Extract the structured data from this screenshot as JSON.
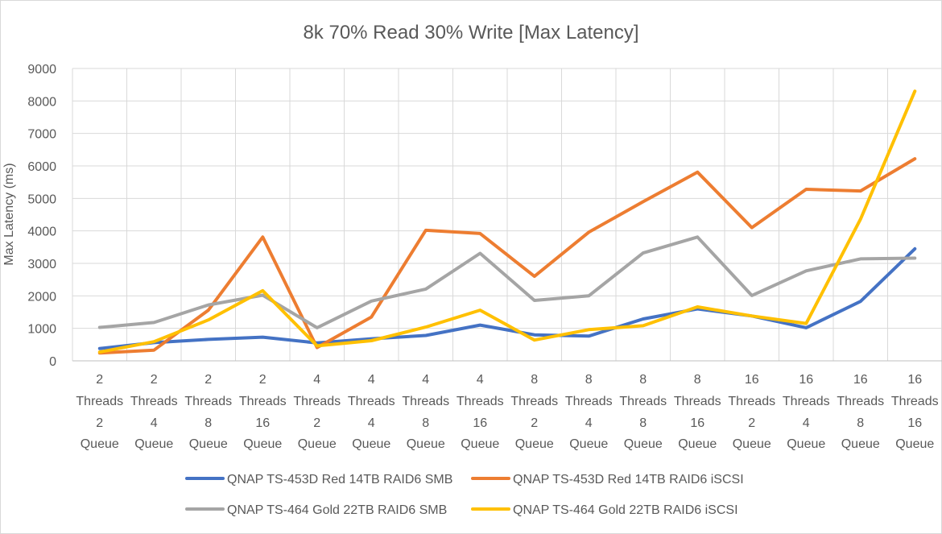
{
  "chart_data": {
    "type": "line",
    "title": "8k 70% Read 30% Write [Max Latency]",
    "xlabel": "",
    "ylabel": "Max Latency (ms)",
    "ylim": [
      0,
      9000
    ],
    "yticks": [
      "0",
      "1000",
      "2000",
      "3000",
      "4000",
      "5000",
      "6000",
      "7000",
      "8000",
      "9000"
    ],
    "grid": "vertical and horizontal",
    "legend": "bottom",
    "categories": [
      [
        "2",
        "Threads",
        "2",
        "Queue"
      ],
      [
        "2",
        "Threads",
        "4",
        "Queue"
      ],
      [
        "2",
        "Threads",
        "8",
        "Queue"
      ],
      [
        "2",
        "Threads",
        "16",
        "Queue"
      ],
      [
        "4",
        "Threads",
        "2",
        "Queue"
      ],
      [
        "4",
        "Threads",
        "4",
        "Queue"
      ],
      [
        "4",
        "Threads",
        "8",
        "Queue"
      ],
      [
        "4",
        "Threads",
        "16",
        "Queue"
      ],
      [
        "8",
        "Threads",
        "2",
        "Queue"
      ],
      [
        "8",
        "Threads",
        "4",
        "Queue"
      ],
      [
        "8",
        "Threads",
        "8",
        "Queue"
      ],
      [
        "8",
        "Threads",
        "16",
        "Queue"
      ],
      [
        "16",
        "Threads",
        "2",
        "Queue"
      ],
      [
        "16",
        "Threads",
        "4",
        "Queue"
      ],
      [
        "16",
        "Threads",
        "8",
        "Queue"
      ],
      [
        "16",
        "Threads",
        "16",
        "Queue"
      ]
    ],
    "series": [
      {
        "name": "QNAP TS-453D Red 14TB RAID6 SMB",
        "color": "#4472c4",
        "values": [
          380,
          560,
          660,
          730,
          550,
          680,
          780,
          1100,
          800,
          760,
          1290,
          1600,
          1380,
          1020,
          1830,
          3450
        ]
      },
      {
        "name": "QNAP TS-453D Red 14TB RAID6 iSCSI",
        "color": "#ed7d31",
        "values": [
          240,
          330,
          1560,
          3810,
          410,
          1350,
          4020,
          3920,
          2600,
          3960,
          4900,
          5810,
          4100,
          5280,
          5230,
          6220
        ]
      },
      {
        "name": "QNAP TS-464 Gold 22TB RAID6 SMB",
        "color": "#a5a5a5",
        "values": [
          1030,
          1180,
          1720,
          2020,
          1020,
          1840,
          2210,
          3310,
          1860,
          2000,
          3320,
          3810,
          2010,
          2770,
          3140,
          3160
        ]
      },
      {
        "name": "QNAP TS-464 Gold 22TB RAID6 iSCSI",
        "color": "#ffc000",
        "values": [
          270,
          590,
          1260,
          2160,
          460,
          620,
          1040,
          1560,
          640,
          960,
          1080,
          1660,
          1380,
          1150,
          4360,
          8300
        ]
      }
    ]
  }
}
